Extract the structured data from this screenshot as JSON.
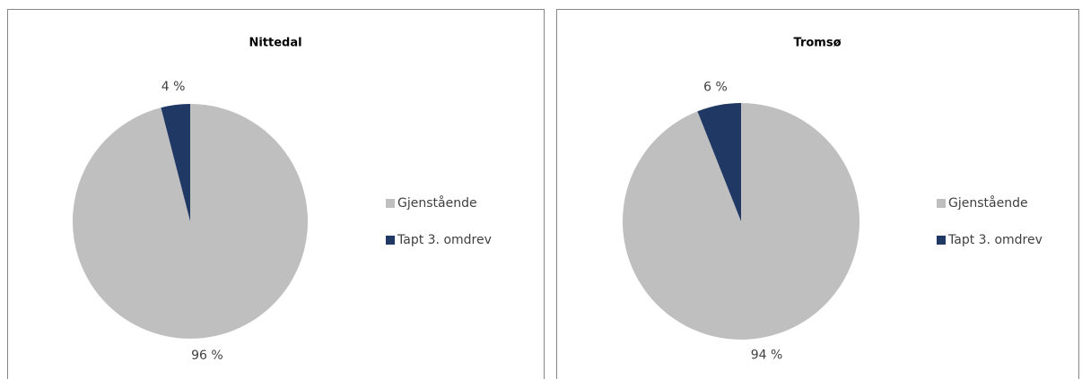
{
  "chart_data": [
    {
      "type": "pie",
      "title": "Nittedal",
      "categories": [
        "Gjenstående",
        "Tapt 3. omdrev"
      ],
      "values": [
        96,
        4
      ],
      "value_labels": [
        "96 %",
        "4 %"
      ],
      "colors": [
        "#bfbfbf",
        "#203864"
      ]
    },
    {
      "type": "pie",
      "title": "Tromsø",
      "categories": [
        "Gjenstående",
        "Tapt 3. omdrev"
      ],
      "values": [
        94,
        6
      ],
      "value_labels": [
        "94 %",
        "6 %"
      ],
      "colors": [
        "#bfbfbf",
        "#203864"
      ]
    }
  ]
}
